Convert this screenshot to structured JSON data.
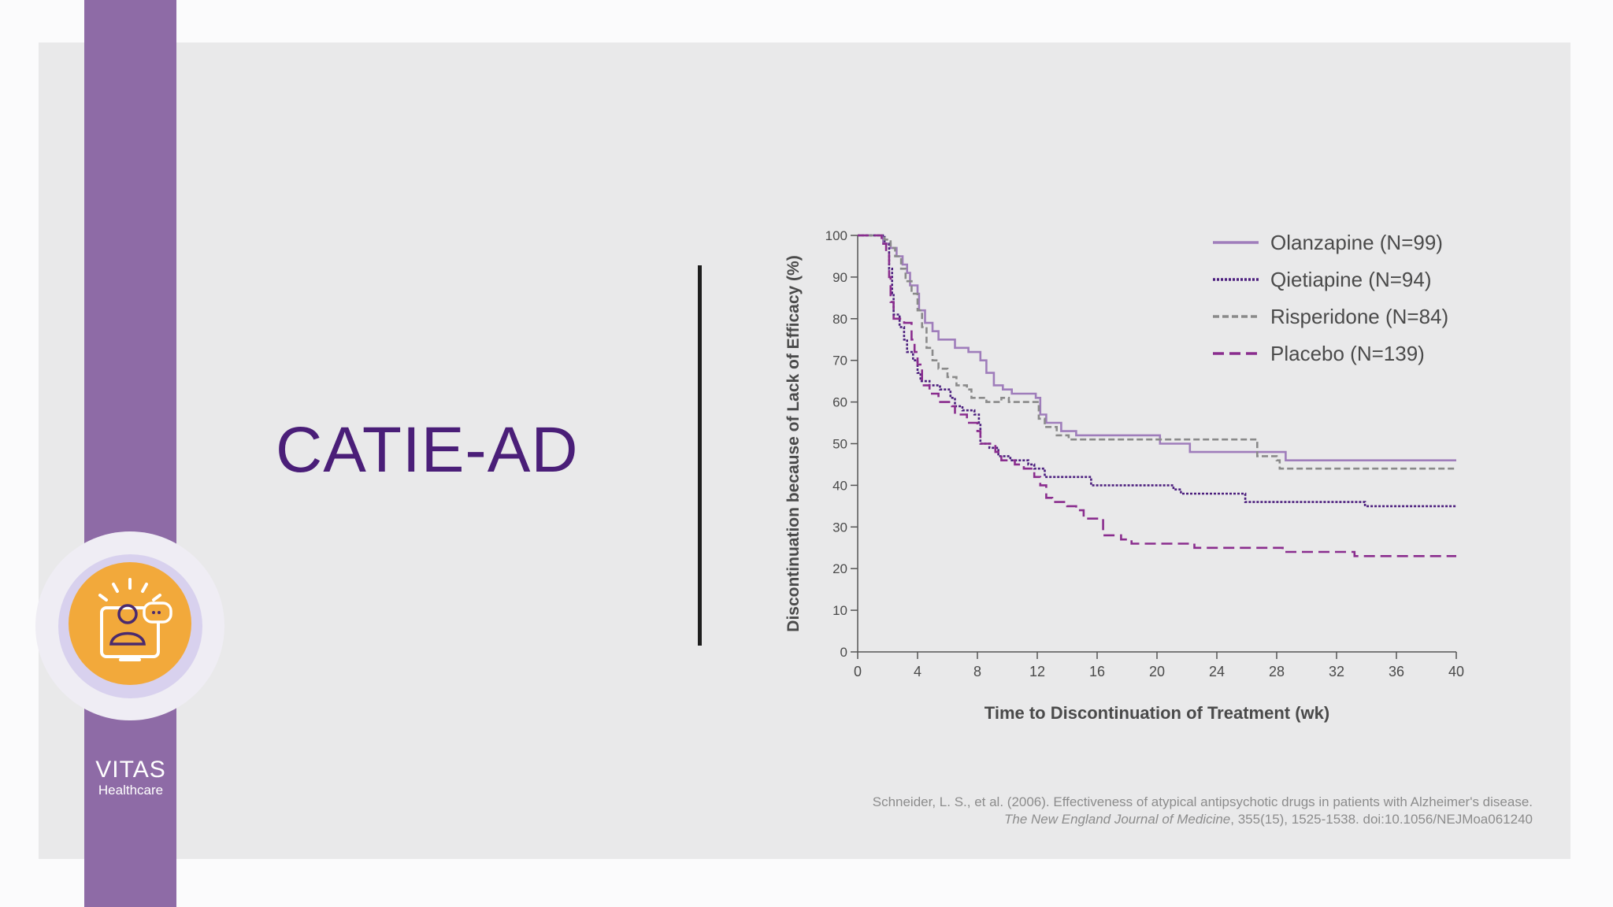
{
  "slide": {
    "title": "CATIE-AD",
    "logo_line1": "VITAS",
    "logo_line2": "Healthcare",
    "citation_line1": "Schneider, L. S., et al. (2006). Effectiveness of atypical antipsychotic drugs in patients with Alzheimer's disease.",
    "citation_journal": "The New England Journal of Medicine",
    "citation_rest": ", 355(15), 1525-1538. doi:10.1056/NEJMoa061240",
    "badge_icon": "telehealth-person-chat-icon"
  },
  "colors": {
    "title": "#4a1e78",
    "stripe": "#8e6ba6",
    "badge": "#f2a93b",
    "olanzapine": "#9f7dbb",
    "qietiapine": "#4c1f7e",
    "risperidone": "#8a8a8a",
    "placebo": "#8a2d8e"
  },
  "chart_data": {
    "type": "line",
    "subtype": "step (Kaplan-Meier)",
    "xlabel": "Time to Discontinuation of Treatment (wk)",
    "ylabel": "Discontinuation because of Lack of Efficacy (%)",
    "xlim": [
      0,
      40
    ],
    "ylim": [
      0,
      100
    ],
    "xticks": [
      0,
      4,
      8,
      12,
      16,
      20,
      24,
      28,
      32,
      36,
      40
    ],
    "yticks": [
      0,
      10,
      20,
      30,
      40,
      50,
      60,
      70,
      80,
      90,
      100
    ],
    "legend_position": "top-right",
    "series": [
      {
        "name": "Olanzapine (N=99)",
        "style": "solid",
        "color_key": "olanzapine",
        "points": [
          [
            0,
            100
          ],
          [
            1.7,
            100
          ],
          [
            1.7,
            98
          ],
          [
            2.2,
            97
          ],
          [
            2.6,
            95
          ],
          [
            3,
            93
          ],
          [
            3.3,
            91
          ],
          [
            3.5,
            88
          ],
          [
            4,
            86
          ],
          [
            4.1,
            82
          ],
          [
            4.5,
            79
          ],
          [
            5,
            77
          ],
          [
            5.4,
            75
          ],
          [
            6.5,
            73
          ],
          [
            7.4,
            72
          ],
          [
            8.2,
            70
          ],
          [
            8.6,
            67
          ],
          [
            9.1,
            64
          ],
          [
            9.7,
            63
          ],
          [
            10.3,
            62
          ],
          [
            11.9,
            61
          ],
          [
            12.2,
            57
          ],
          [
            12.6,
            55
          ],
          [
            13.6,
            53
          ],
          [
            14.6,
            52
          ],
          [
            20,
            52
          ],
          [
            20.2,
            50
          ],
          [
            22.2,
            48
          ],
          [
            28.4,
            48
          ],
          [
            28.6,
            46
          ],
          [
            40,
            46
          ]
        ]
      },
      {
        "name": "Qietiapine (N=94)",
        "style": "dotted",
        "color_key": "qietiapine",
        "points": [
          [
            0,
            100
          ],
          [
            1.4,
            100
          ],
          [
            1.8,
            98
          ],
          [
            2.1,
            92
          ],
          [
            2.3,
            86
          ],
          [
            2.4,
            81
          ],
          [
            2.8,
            78
          ],
          [
            3.1,
            75
          ],
          [
            3.3,
            72
          ],
          [
            3.7,
            70
          ],
          [
            4,
            67
          ],
          [
            4.2,
            65
          ],
          [
            4.8,
            64
          ],
          [
            5.5,
            63
          ],
          [
            6.2,
            61
          ],
          [
            6.5,
            59
          ],
          [
            7,
            58
          ],
          [
            7.8,
            57
          ],
          [
            8.1,
            55
          ],
          [
            8.2,
            50
          ],
          [
            8.8,
            49
          ],
          [
            9.4,
            47
          ],
          [
            10.2,
            46
          ],
          [
            11.4,
            45
          ],
          [
            11.8,
            44
          ],
          [
            12.5,
            42
          ],
          [
            15.4,
            42
          ],
          [
            15.6,
            40
          ],
          [
            21.1,
            39
          ],
          [
            21.6,
            38
          ],
          [
            25.6,
            38
          ],
          [
            25.9,
            36
          ],
          [
            33.7,
            36
          ],
          [
            33.9,
            35
          ],
          [
            40,
            35
          ]
        ]
      },
      {
        "name": "Risperidone (N=84)",
        "style": "dashed",
        "color_key": "risperidone",
        "points": [
          [
            0,
            100
          ],
          [
            1.4,
            100
          ],
          [
            1.8,
            99
          ],
          [
            2.2,
            97
          ],
          [
            2.5,
            95
          ],
          [
            2.9,
            92
          ],
          [
            3.2,
            89
          ],
          [
            3.6,
            86
          ],
          [
            4,
            82
          ],
          [
            4.3,
            78
          ],
          [
            4.6,
            73
          ],
          [
            5,
            70
          ],
          [
            5.4,
            68
          ],
          [
            6,
            66
          ],
          [
            6.6,
            64
          ],
          [
            7.3,
            63
          ],
          [
            7.6,
            61
          ],
          [
            8.6,
            60
          ],
          [
            9.6,
            61
          ],
          [
            10.1,
            60
          ],
          [
            11.8,
            60
          ],
          [
            12.1,
            56
          ],
          [
            12.5,
            54
          ],
          [
            13.3,
            52
          ],
          [
            14.1,
            51
          ],
          [
            26.3,
            51
          ],
          [
            26.7,
            47
          ],
          [
            28,
            46
          ],
          [
            28.2,
            44
          ],
          [
            40,
            44
          ]
        ]
      },
      {
        "name": "Placebo (N=139)",
        "style": "long-dash",
        "color_key": "placebo",
        "points": [
          [
            0,
            100
          ],
          [
            1.6,
            98
          ],
          [
            1.9,
            96
          ],
          [
            2.1,
            90
          ],
          [
            2.2,
            84
          ],
          [
            2.4,
            80
          ],
          [
            3.1,
            79
          ],
          [
            3.6,
            75
          ],
          [
            3.8,
            72
          ],
          [
            4,
            69
          ],
          [
            4.3,
            64
          ],
          [
            4.8,
            62
          ],
          [
            5.4,
            60
          ],
          [
            6.3,
            59
          ],
          [
            6.5,
            57
          ],
          [
            7.3,
            55
          ],
          [
            8,
            53
          ],
          [
            8.2,
            50
          ],
          [
            9.2,
            48
          ],
          [
            9.6,
            46
          ],
          [
            10.5,
            45
          ],
          [
            11.1,
            44
          ],
          [
            11.8,
            42
          ],
          [
            12.2,
            40
          ],
          [
            12.6,
            37
          ],
          [
            13,
            36
          ],
          [
            14,
            35
          ],
          [
            14.6,
            34
          ],
          [
            15.1,
            32
          ],
          [
            15.7,
            32
          ],
          [
            16.4,
            28
          ],
          [
            17.6,
            27
          ],
          [
            18.3,
            26
          ],
          [
            22.3,
            26
          ],
          [
            22.5,
            25
          ],
          [
            28,
            25
          ],
          [
            28.4,
            24
          ],
          [
            32.8,
            24
          ],
          [
            33.2,
            23
          ],
          [
            40,
            23
          ]
        ]
      }
    ]
  }
}
